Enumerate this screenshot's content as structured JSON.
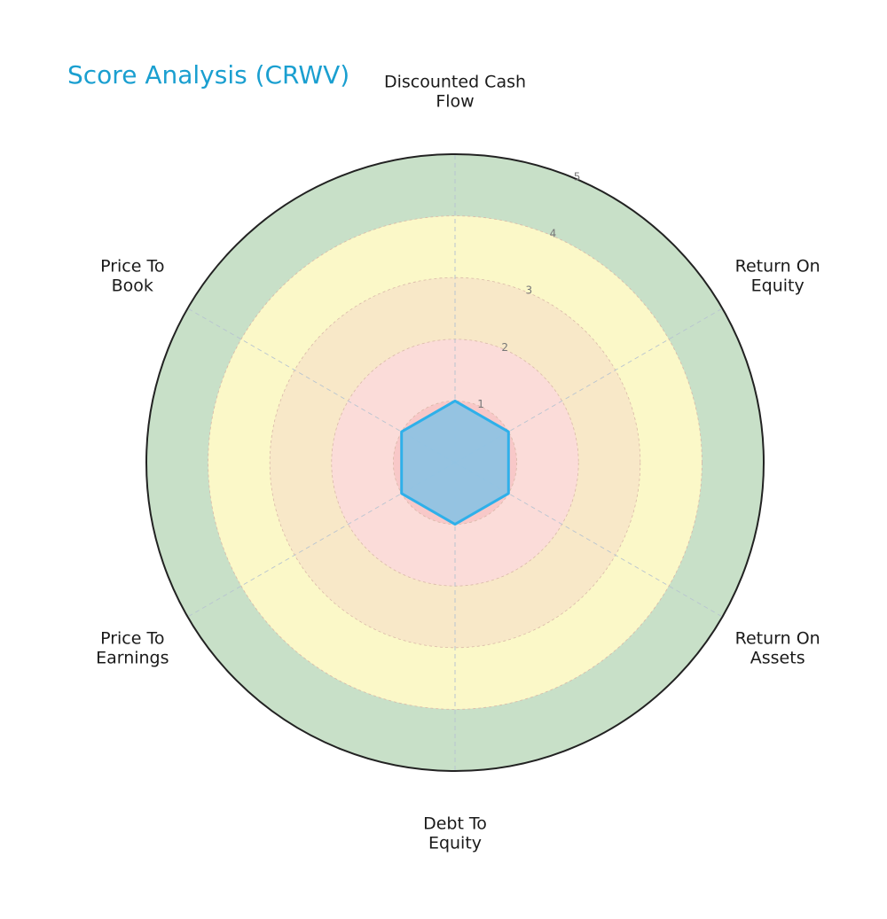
{
  "title": "Score Analysis (CRWV)",
  "colors": {
    "title": "#1a9fd0",
    "ring_1": "#f8c8c8",
    "ring_2": "#fbdcd9",
    "ring_3": "#f8e8c8",
    "ring_4": "#fbf8c8",
    "ring_5": "#c8e0c8",
    "series_fill": "#8fc3e3",
    "series_line": "#2eb0ea"
  },
  "chart_data": {
    "type": "radar",
    "title": "Score Analysis (CRWV)",
    "categories": [
      [
        "Discounted Cash",
        "Flow"
      ],
      [
        "Return On",
        "Equity"
      ],
      [
        "Return On",
        "Assets"
      ],
      [
        "Debt To",
        "Equity"
      ],
      [
        "Price To",
        "Earnings"
      ],
      [
        "Price To",
        "Book"
      ]
    ],
    "category_names": [
      "Discounted Cash Flow",
      "Return On Equity",
      "Return On Assets",
      "Debt To Equity",
      "Price To Earnings",
      "Price To Book"
    ],
    "series": [
      {
        "name": "CRWV",
        "values": [
          1,
          1,
          1,
          1,
          1,
          1
        ]
      }
    ],
    "rlim": [
      0,
      5
    ],
    "r_ticks": [
      "1",
      "2",
      "3",
      "4",
      "5"
    ],
    "grid": true,
    "legend": "none"
  }
}
